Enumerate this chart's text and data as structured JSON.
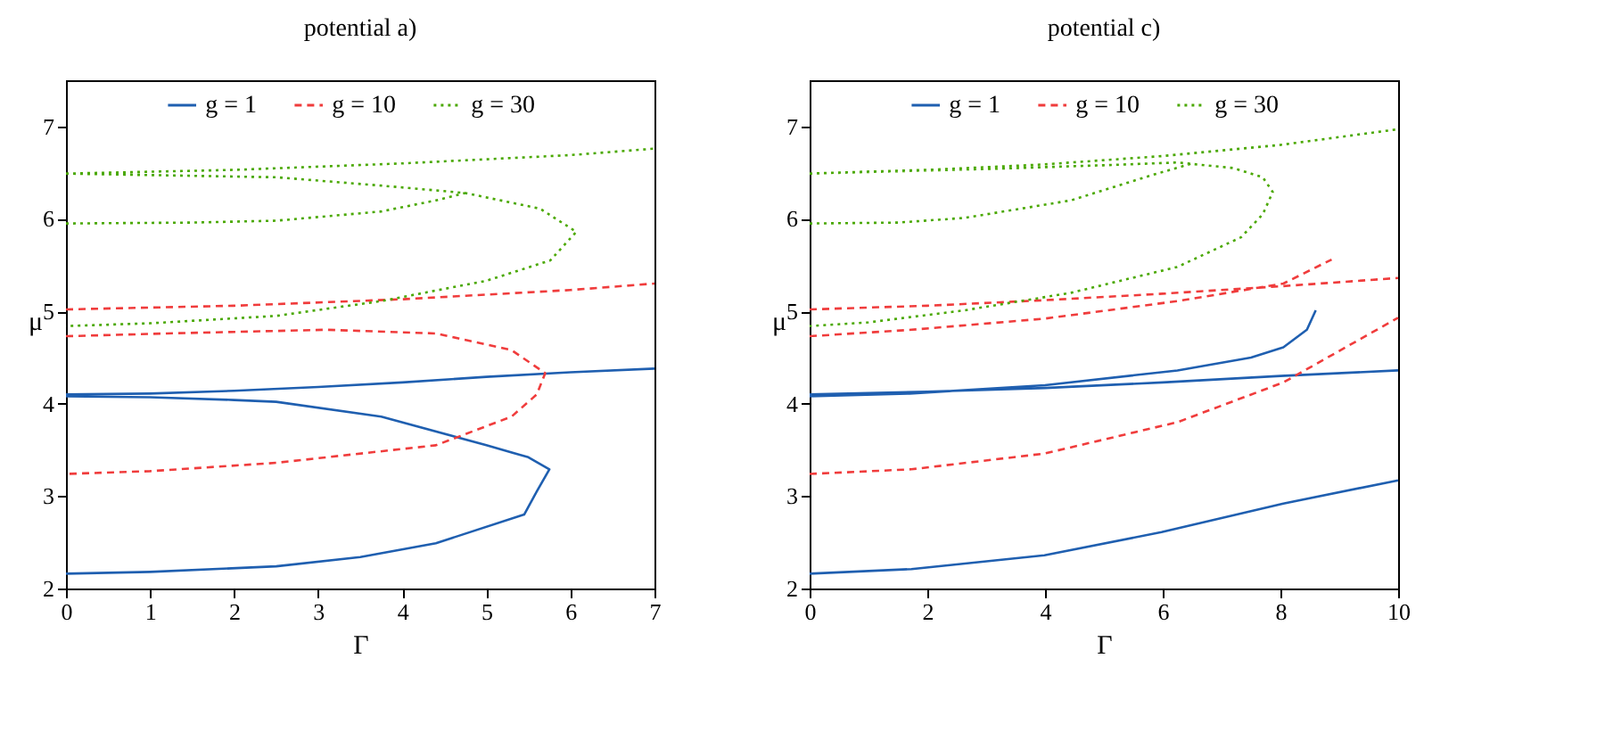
{
  "chart_data": [
    {
      "type": "line",
      "title": "potential a)",
      "xlabel": "Γ",
      "ylabel": "μ",
      "xlim": [
        0,
        7
      ],
      "xticks": [
        0,
        1,
        2,
        3,
        4,
        5,
        6,
        7
      ],
      "ylim": [
        2,
        7.5
      ],
      "yticks": [
        2,
        3,
        4,
        5,
        6,
        7
      ],
      "grid": false,
      "legend": "top",
      "series": [
        {
          "name": "g = 1",
          "color": "#1f5fb0",
          "line_style": "solid",
          "x": [
            0,
            1,
            2,
            3,
            4,
            5,
            6,
            7,
            null,
            0,
            1,
            2,
            2.5,
            3.75,
            5,
            5.5,
            5.75,
            5.6,
            5.45,
            4.4,
            3.5,
            2.5,
            1,
            0
          ],
          "values": [
            4.1,
            4.11,
            4.14,
            4.18,
            4.23,
            4.29,
            4.34,
            4.38,
            null,
            4.08,
            4.07,
            4.04,
            4.02,
            3.86,
            3.55,
            3.42,
            3.29,
            3.05,
            2.8,
            2.49,
            2.34,
            2.24,
            2.18,
            2.16
          ]
        },
        {
          "name": "g = 10",
          "color": "#f03c3c",
          "line_style": "dashed",
          "x": [
            0,
            2,
            4,
            6,
            7,
            null,
            0,
            1.2,
            3.1,
            4.4,
            5.3,
            5.7,
            5.6,
            5.3,
            4.4,
            2.5,
            1,
            0
          ],
          "values": [
            5.02,
            5.06,
            5.13,
            5.23,
            5.3,
            null,
            4.73,
            4.76,
            4.8,
            4.76,
            4.58,
            4.33,
            4.1,
            3.86,
            3.55,
            3.36,
            3.27,
            3.24
          ]
        },
        {
          "name": "g = 30",
          "color": "#4aa800",
          "line_style": "dotted",
          "x": [
            0,
            2,
            4,
            6,
            7,
            null,
            0,
            2.5,
            3.75,
            4.75,
            5.64,
            6.07,
            5.76,
            5,
            3.75,
            2.5,
            1,
            0,
            null,
            0,
            1.5,
            2.5,
            3.75,
            4.4,
            4.75
          ],
          "values": [
            6.49,
            6.53,
            6.6,
            6.69,
            6.76,
            null,
            6.49,
            6.45,
            6.36,
            6.28,
            6.11,
            5.86,
            5.55,
            5.33,
            5.11,
            4.95,
            4.87,
            4.84,
            null,
            5.95,
            5.96,
            5.98,
            6.08,
            6.2,
            6.28
          ]
        }
      ]
    },
    {
      "type": "line",
      "title": "potential c)",
      "xlabel": "Γ",
      "ylabel": "μ",
      "xlim": [
        0,
        10
      ],
      "xticks": [
        0,
        2,
        4,
        6,
        8,
        10
      ],
      "ylim": [
        2,
        7.5
      ],
      "yticks": [
        2,
        3,
        4,
        5,
        6,
        7
      ],
      "grid": false,
      "legend": "top",
      "series": [
        {
          "name": "g = 1",
          "color": "#1f5fb0",
          "line_style": "solid",
          "x": [
            0,
            1.73,
            3.99,
            5.98,
            8.05,
            10,
            null,
            0,
            2,
            4,
            6,
            8,
            10,
            null,
            0,
            1.7,
            4,
            6.25,
            7.5,
            8.05,
            8.45,
            8.6
          ],
          "values": [
            2.16,
            2.21,
            2.36,
            2.61,
            2.92,
            3.17,
            null,
            4.1,
            4.13,
            4.17,
            4.23,
            4.3,
            4.36,
            null,
            4.08,
            4.11,
            4.2,
            4.36,
            4.5,
            4.61,
            4.8,
            5.01
          ]
        },
        {
          "name": "g = 10",
          "color": "#f03c3c",
          "line_style": "dashed",
          "x": [
            0,
            1.73,
            3.99,
            6.25,
            8.05,
            10,
            null,
            0,
            2,
            4,
            6,
            8,
            10,
            null,
            0,
            1.73,
            3.99,
            6.25,
            8.05,
            8.87
          ],
          "values": [
            3.24,
            3.29,
            3.46,
            3.8,
            4.23,
            4.93,
            null,
            5.02,
            5.06,
            5.12,
            5.19,
            5.27,
            5.36,
            null,
            4.73,
            4.8,
            4.92,
            5.11,
            5.3,
            5.56
          ]
        },
        {
          "name": "g = 30",
          "color": "#4aa800",
          "line_style": "dotted",
          "x": [
            0,
            2,
            4,
            6,
            8,
            10,
            null,
            0,
            3,
            5,
            6.25,
            7.2,
            7.7,
            7.87,
            7.7,
            7.33,
            6.25,
            4.44,
            2.63,
            1,
            0,
            null,
            0,
            1.5,
            2.63,
            4.44,
            5.8,
            6.5
          ],
          "values": [
            6.49,
            6.53,
            6.59,
            6.68,
            6.8,
            6.97,
            null,
            6.49,
            6.54,
            6.58,
            6.61,
            6.55,
            6.45,
            6.29,
            6.05,
            5.8,
            5.48,
            5.2,
            5.01,
            4.88,
            4.84,
            null,
            5.95,
            5.96,
            6.01,
            6.2,
            6.47,
            6.6
          ]
        }
      ]
    }
  ]
}
